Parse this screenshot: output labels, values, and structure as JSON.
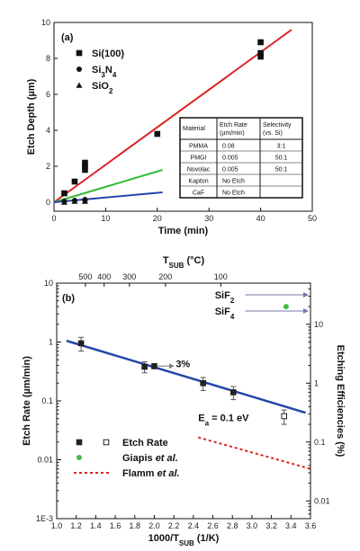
{
  "chart_data": [
    {
      "type": "scatter",
      "panel_label": "(a)",
      "xlabel": "Time (min)",
      "ylabel": "Etch Depth (µm)",
      "xlim": [
        0,
        50
      ],
      "ylim": [
        -0.5,
        10
      ],
      "x_ticks": [
        0,
        10,
        20,
        30,
        40,
        50
      ],
      "y_ticks": [
        0,
        2,
        4,
        6,
        8,
        10
      ],
      "series": [
        {
          "name": "Si(100)",
          "marker": "square",
          "color": "#111111",
          "points": [
            [
              2,
              0.5
            ],
            [
              4,
              1.15
            ],
            [
              6,
              2.0
            ],
            [
              6,
              2.2
            ],
            [
              6,
              1.8
            ],
            [
              20,
              3.8
            ],
            [
              40,
              8.9
            ],
            [
              40,
              8.3
            ],
            [
              40,
              8.1
            ]
          ]
        },
        {
          "name": "Si3N4",
          "marker": "circle",
          "color": "#111111",
          "points": [
            [
              2,
              0.05
            ],
            [
              4,
              0.1
            ],
            [
              6,
              0.15
            ],
            [
              6,
              0.1
            ]
          ]
        },
        {
          "name": "SiO2",
          "marker": "triangle",
          "color": "#111111",
          "points": [
            [
              2,
              0.0
            ],
            [
              4,
              0.05
            ],
            [
              6,
              0.05
            ]
          ]
        }
      ],
      "fit_lines": [
        {
          "color": "#dd2222",
          "x": [
            0,
            46
          ],
          "y": [
            0,
            9.6
          ]
        },
        {
          "color": "#33bb33",
          "x": [
            0,
            21
          ],
          "y": [
            0,
            1.8
          ]
        },
        {
          "color": "#2244aa",
          "x": [
            0,
            21
          ],
          "y": [
            0,
            0.55
          ]
        }
      ],
      "legend_placement": "top-left",
      "table": {
        "headers": [
          "Material",
          "Etch Rate (µm/min)",
          "Selectivity (vs. Si)"
        ],
        "rows": [
          [
            "PMMA",
            "0.08",
            "3:1"
          ],
          [
            "PMGI",
            "0.005",
            "50:1"
          ],
          [
            "Novolac",
            "0.005",
            "50:1"
          ],
          [
            "Kapton",
            "No Etch",
            ""
          ],
          [
            "CaF",
            "No Etch",
            ""
          ]
        ]
      }
    },
    {
      "type": "scatter",
      "panel_label": "(b)",
      "xlabel": "1000/T_SUB (1/K)",
      "top_xlabel": "T_SUB (°C)",
      "ylabel": "Etch Rate (µm/min)",
      "y2label": "Etching Efficiencies (%)",
      "xlim": [
        1.0,
        3.6
      ],
      "ylim_log": [
        0.001,
        10
      ],
      "y2lim_log": [
        0.005,
        50
      ],
      "scale": "log",
      "x_ticks": [
        "1.0",
        "1.2",
        "1.4",
        "1.6",
        "1.8",
        "2.0",
        "2.2",
        "2.4",
        "2.6",
        "2.8",
        "3.0",
        "3.2",
        "3.4",
        "3.6"
      ],
      "y_ticks": [
        {
          "v": 10,
          "label": "10"
        },
        {
          "v": 1,
          "label": "1"
        },
        {
          "v": 0.1,
          "label": "0.1"
        },
        {
          "v": 0.01,
          "label": "0.01"
        },
        {
          "v": 0.001,
          "label": "1E-3"
        }
      ],
      "y2_ticks": [
        {
          "v": 10,
          "label": "10"
        },
        {
          "v": 1,
          "label": "1"
        },
        {
          "v": 0.1,
          "label": "0.1"
        },
        {
          "v": 0.01,
          "label": "0.01"
        }
      ],
      "top_ticks": [
        {
          "x": 1.294,
          "label": "500"
        },
        {
          "x": 1.486,
          "label": "400"
        },
        {
          "x": 1.745,
          "label": "300"
        },
        {
          "x": 2.114,
          "label": "200"
        },
        {
          "x": 2.681,
          "label": "100"
        }
      ],
      "etch_rate": {
        "name": "Etch Rate",
        "points": [
          {
            "x": 1.25,
            "y": 0.95,
            "err": 0.25
          },
          {
            "x": 1.9,
            "y": 0.38,
            "err": 0.08
          },
          {
            "x": 2.0,
            "y": 0.39,
            "err": 0.04
          },
          {
            "x": 2.5,
            "y": 0.2,
            "err": 0.05
          },
          {
            "x": 2.81,
            "y": 0.14,
            "err": 0.035
          },
          {
            "x": 3.33,
            "y": 0.055,
            "err": 0.015,
            "open": true
          }
        ]
      },
      "fit_line": {
        "color": "#2244aa",
        "x": [
          1.1,
          3.55
        ],
        "y": [
          1.05,
          0.063
        ]
      },
      "giapis": {
        "name": "Giapis et al.",
        "color": "#44bb44",
        "x": 3.35,
        "y2": 20
      },
      "flamm": {
        "name": "Flamm et al.",
        "color": "#dd2222",
        "x": [
          2.45,
          3.6
        ],
        "y2": [
          0.12,
          0.035
        ]
      },
      "annotations": {
        "three_percent": "3%",
        "ea": "E",
        "ea_sub": "a",
        "ea_rest": " = 0.1 eV",
        "sif2": "SiF",
        "sif2_sub": "2",
        "sif4": "SiF",
        "sif4_sub": "4"
      }
    }
  ]
}
